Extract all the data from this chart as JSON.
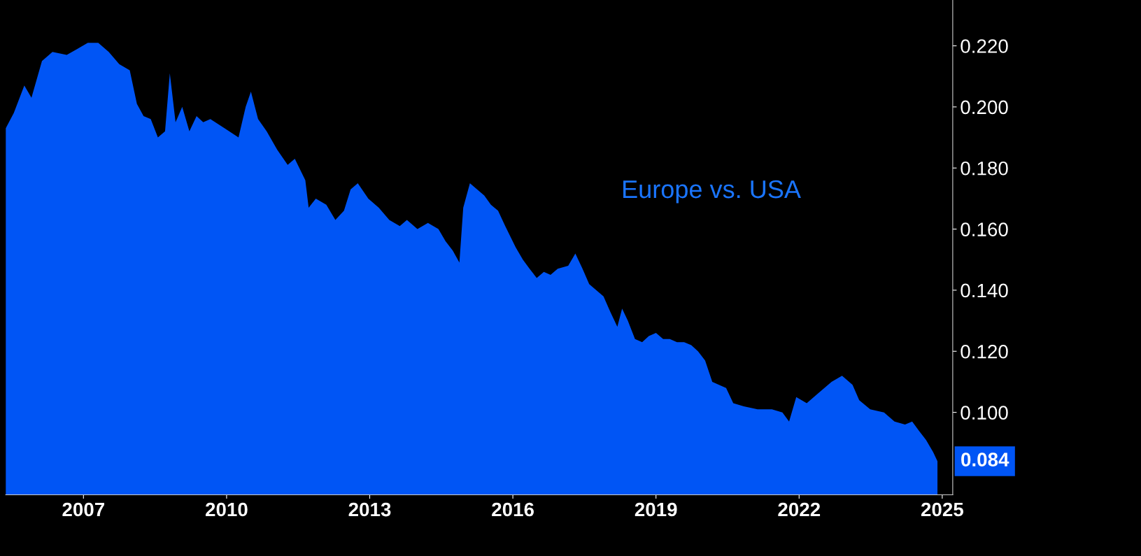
{
  "chart_data": {
    "type": "area",
    "annotations": [
      "Europe vs. USA"
    ],
    "x": [
      2005.37,
      2005.54,
      2005.76,
      2005.91,
      2006.13,
      2006.35,
      2006.65,
      2006.87,
      2007.09,
      2007.31,
      2007.53,
      2007.75,
      2007.97,
      2008.12,
      2008.26,
      2008.41,
      2008.56,
      2008.71,
      2008.81,
      2008.93,
      2009.07,
      2009.22,
      2009.37,
      2009.51,
      2009.66,
      2009.96,
      2010.25,
      2010.4,
      2010.51,
      2010.66,
      2010.84,
      2011.06,
      2011.28,
      2011.43,
      2011.65,
      2011.72,
      2011.87,
      2012.09,
      2012.28,
      2012.46,
      2012.6,
      2012.75,
      2012.97,
      2013.19,
      2013.41,
      2013.63,
      2013.78,
      2014.0,
      2014.22,
      2014.44,
      2014.59,
      2014.74,
      2014.88,
      2014.96,
      2015.1,
      2015.25,
      2015.4,
      2015.54,
      2015.69,
      2015.84,
      2016.06,
      2016.21,
      2016.35,
      2016.5,
      2016.65,
      2016.79,
      2016.94,
      2017.16,
      2017.31,
      2017.46,
      2017.6,
      2017.75,
      2017.9,
      2018.04,
      2018.19,
      2018.29,
      2018.41,
      2018.56,
      2018.71,
      2018.85,
      2019.0,
      2019.15,
      2019.29,
      2019.44,
      2019.59,
      2019.74,
      2019.88,
      2020.03,
      2020.18,
      2020.32,
      2020.47,
      2020.62,
      2020.84,
      2021.13,
      2021.43,
      2021.65,
      2021.79,
      2021.94,
      2022.16,
      2022.38,
      2022.68,
      2022.9,
      2023.12,
      2023.26,
      2023.49,
      2023.78,
      2024.0,
      2024.22,
      2024.37,
      2024.51,
      2024.66,
      2024.81,
      2024.9
    ],
    "series": [
      {
        "color": "#0055f5",
        "values": [
          0.193,
          0.198,
          0.207,
          0.203,
          0.215,
          0.218,
          0.217,
          0.219,
          0.221,
          0.221,
          0.218,
          0.214,
          0.212,
          0.201,
          0.197,
          0.196,
          0.19,
          0.192,
          0.211,
          0.195,
          0.2,
          0.192,
          0.197,
          0.195,
          0.196,
          0.193,
          0.19,
          0.2,
          0.205,
          0.196,
          0.192,
          0.186,
          0.181,
          0.183,
          0.176,
          0.167,
          0.17,
          0.168,
          0.163,
          0.166,
          0.173,
          0.175,
          0.17,
          0.167,
          0.163,
          0.161,
          0.163,
          0.16,
          0.162,
          0.16,
          0.156,
          0.153,
          0.149,
          0.167,
          0.175,
          0.173,
          0.171,
          0.168,
          0.166,
          0.161,
          0.154,
          0.15,
          0.147,
          0.144,
          0.146,
          0.145,
          0.147,
          0.148,
          0.152,
          0.147,
          0.142,
          0.14,
          0.138,
          0.133,
          0.128,
          0.134,
          0.13,
          0.124,
          0.123,
          0.125,
          0.126,
          0.124,
          0.124,
          0.123,
          0.123,
          0.122,
          0.12,
          0.117,
          0.11,
          0.109,
          0.108,
          0.103,
          0.102,
          0.101,
          0.101,
          0.1,
          0.097,
          0.105,
          0.103,
          0.106,
          0.11,
          0.112,
          0.109,
          0.104,
          0.101,
          0.1,
          0.097,
          0.096,
          0.097,
          0.094,
          0.091,
          0.087,
          0.084
        ],
        "value_labels": [
          null,
          null,
          null,
          null,
          null,
          null,
          null,
          null,
          null,
          null,
          null,
          null,
          null,
          null,
          null,
          null,
          null,
          null,
          null,
          null,
          null,
          null,
          null,
          null,
          null,
          null,
          null,
          null,
          null,
          null,
          null,
          null,
          null,
          null,
          null,
          null,
          null,
          null,
          null,
          null,
          null,
          null,
          null,
          null,
          null,
          null,
          null,
          null,
          null,
          null,
          null,
          null,
          null,
          null,
          null,
          null,
          null,
          null,
          null,
          null,
          null,
          null,
          null,
          null,
          null,
          null,
          null,
          null,
          null,
          null,
          null,
          null,
          null,
          null,
          null,
          null,
          null,
          null,
          null,
          null,
          null,
          null,
          null,
          null,
          null,
          null,
          null,
          null,
          null,
          null,
          null,
          null,
          null,
          null,
          null,
          null,
          null,
          null,
          null,
          null,
          null,
          null,
          null,
          null,
          null,
          null,
          null,
          null,
          null,
          null,
          null,
          null,
          "0.084"
        ]
      }
    ],
    "xlim": [
      2005.37,
      2025.22
    ],
    "xticks": [
      2007,
      2010,
      2013,
      2016,
      2019,
      2022,
      2025
    ],
    "ylim": [
      0.073,
      0.235
    ],
    "yticks": [
      {
        "value": 0.1,
        "label": "0.100"
      },
      {
        "value": 0.12,
        "label": "0.120"
      },
      {
        "value": 0.14,
        "label": "0.140"
      },
      {
        "value": 0.16,
        "label": "0.160"
      },
      {
        "value": 0.18,
        "label": "0.180"
      },
      {
        "value": 0.2,
        "label": "0.200"
      },
      {
        "value": 0.22,
        "label": "0.220"
      }
    ]
  }
}
